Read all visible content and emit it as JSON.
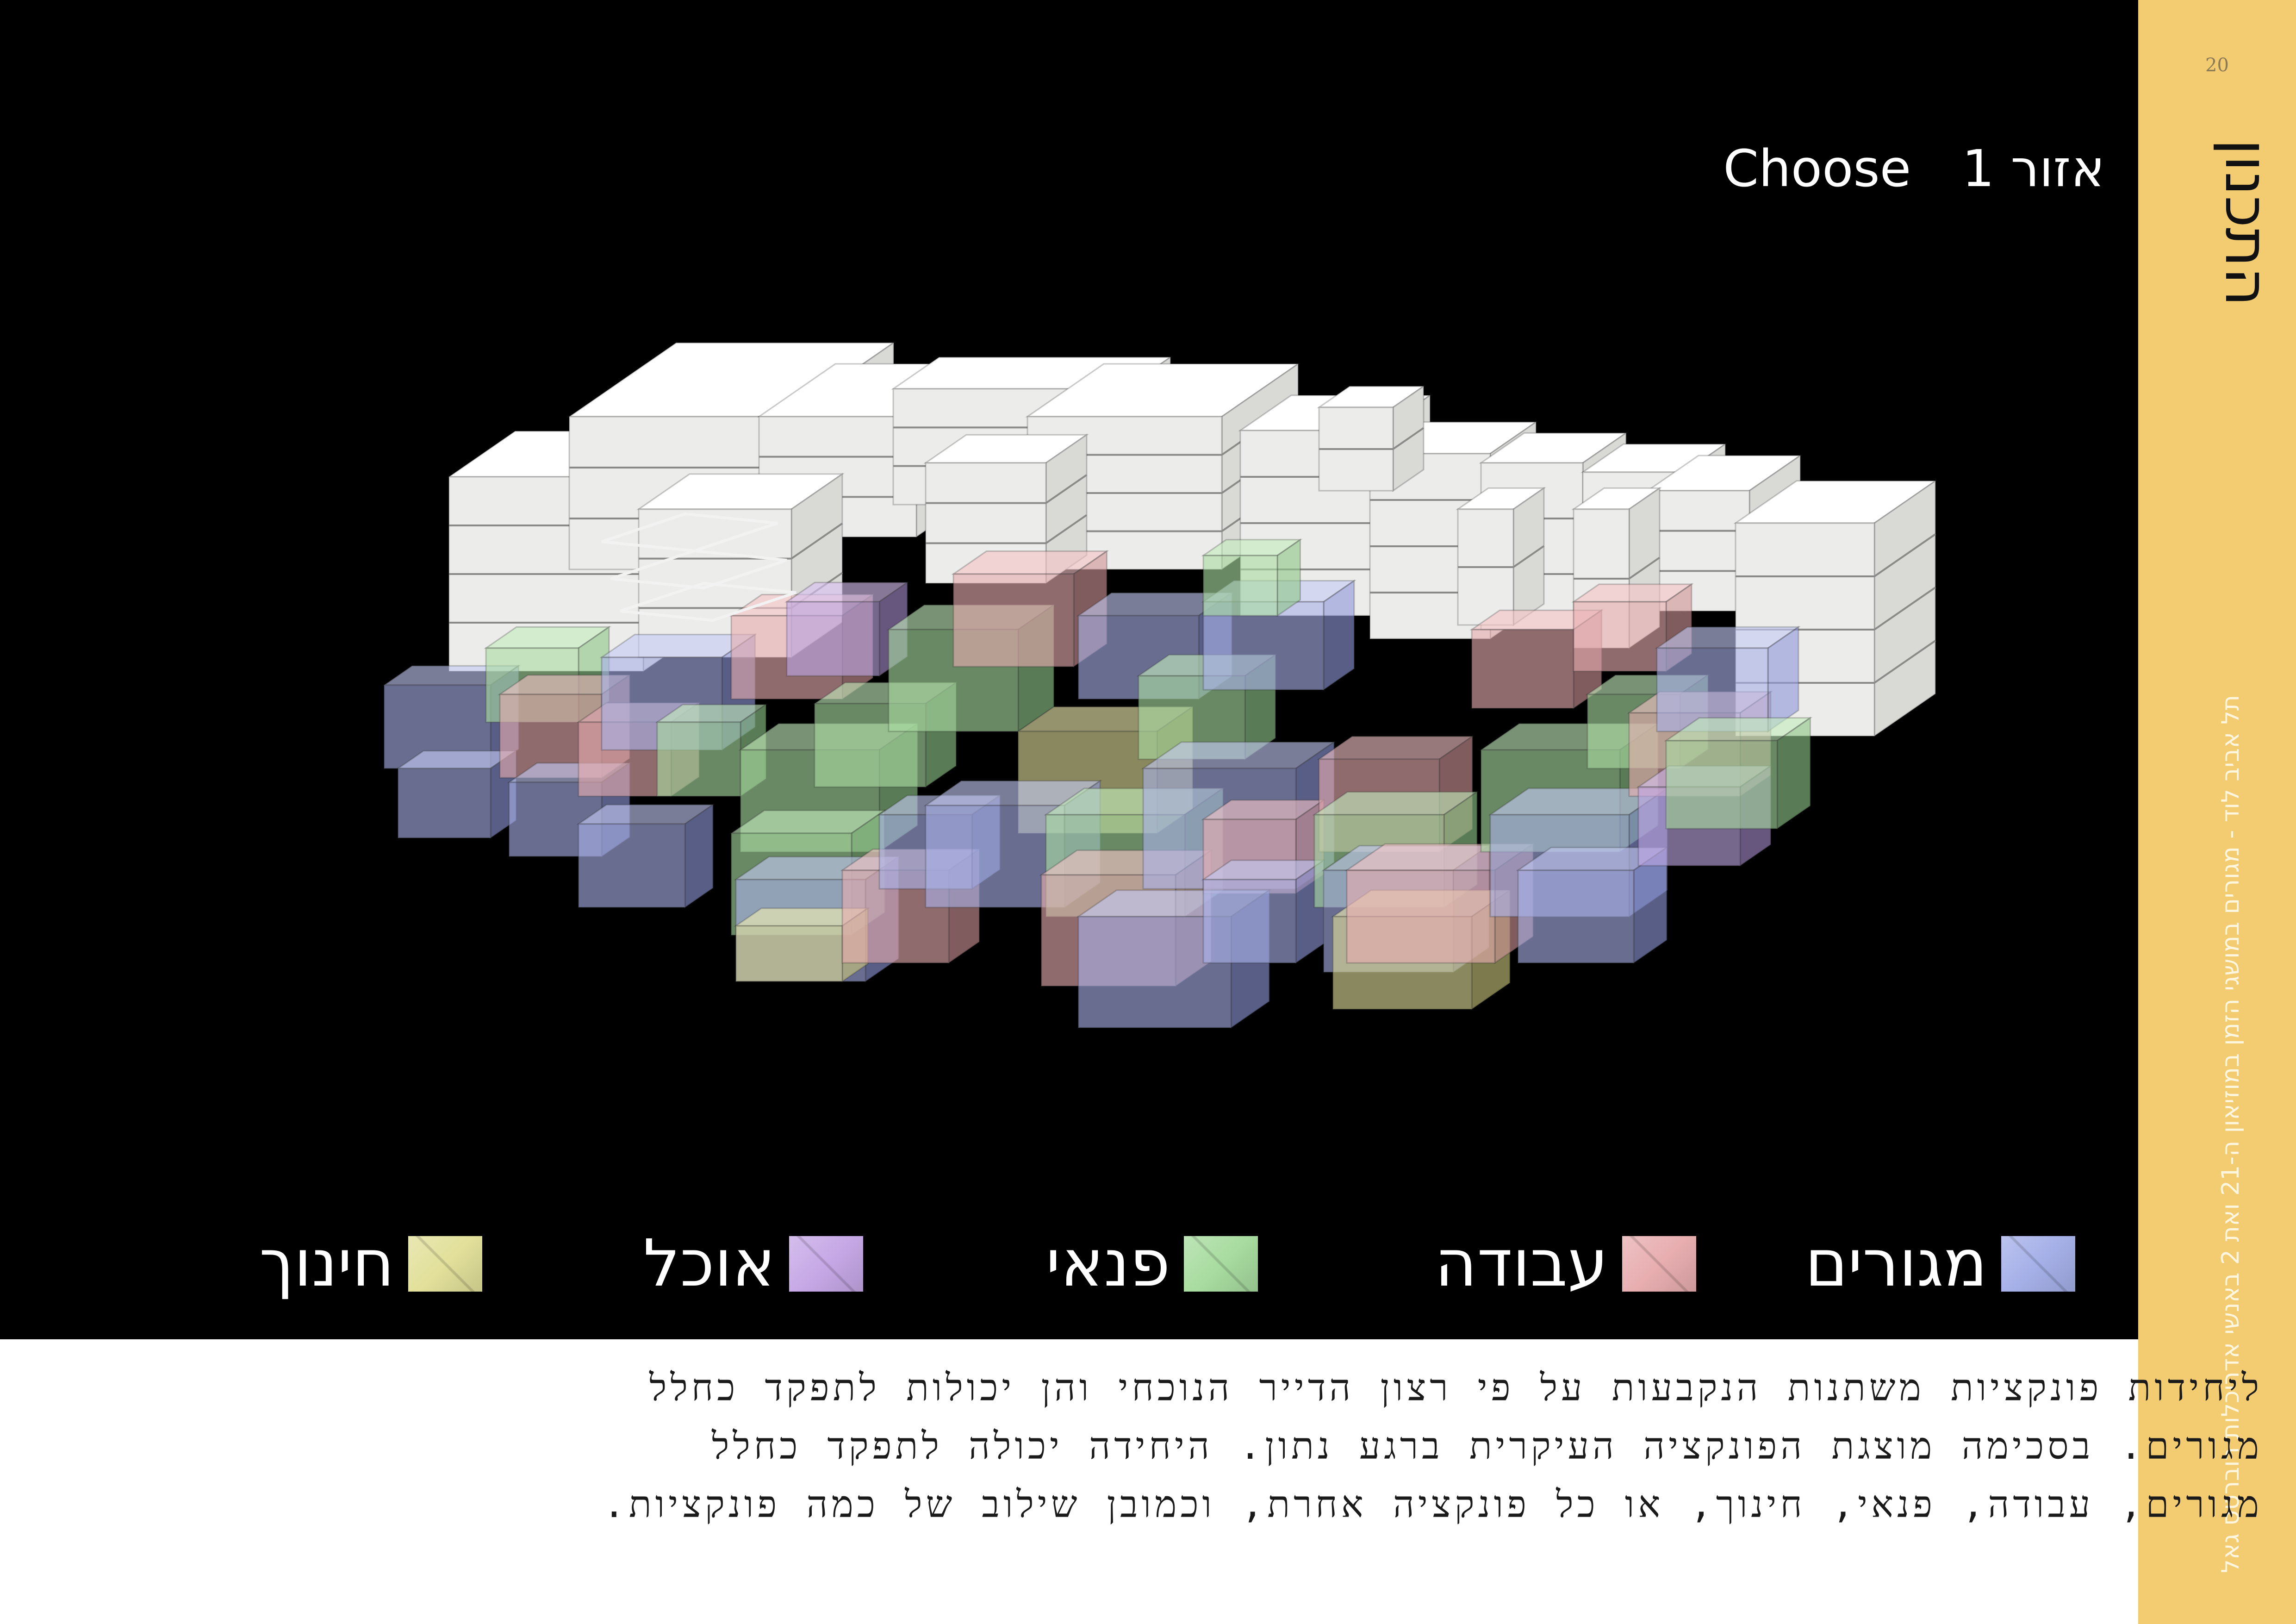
{
  "page": {
    "number": "20"
  },
  "sidebar": {
    "section_title": "התכנון",
    "footer_text": "תל אביב לוד - מגורים במושגי הזמן במוזיאון ה-21 ואת 2 באנשי אדריכלות רוברטס גאל"
  },
  "header": {
    "label": "Choose",
    "zone": "אזור 1"
  },
  "legend": {
    "items": [
      {
        "label": "מגורים",
        "color": "#a5b0e8"
      },
      {
        "label": "עבודה",
        "color": "#e8aeb0"
      },
      {
        "label": "פנאי",
        "color": "#a8dca0"
      },
      {
        "label": "אוכל",
        "color": "#c6a8e6"
      },
      {
        "label": "חינוך",
        "color": "#e2e09a"
      }
    ]
  },
  "caption": {
    "lines": [
      "ליחידות פונקציות משתנות הנקבעות על פי רצון הדייר הנוכחי והן יכולות לתפקד כחלל",
      "מגורים. בסכימה מוצגת הפונקציה העיקרית ברגע נתון. היחידה יכולה לתפקד כחלל",
      "מגורים, עבודה, פנאי, חינוך, או כל פונקציה אחרת, וכמובן שילוב של כמה פונקציות."
    ]
  },
  "colors": {
    "background": "#000000",
    "sidebar": "#f3cc72",
    "building": "#f4f4f2"
  }
}
